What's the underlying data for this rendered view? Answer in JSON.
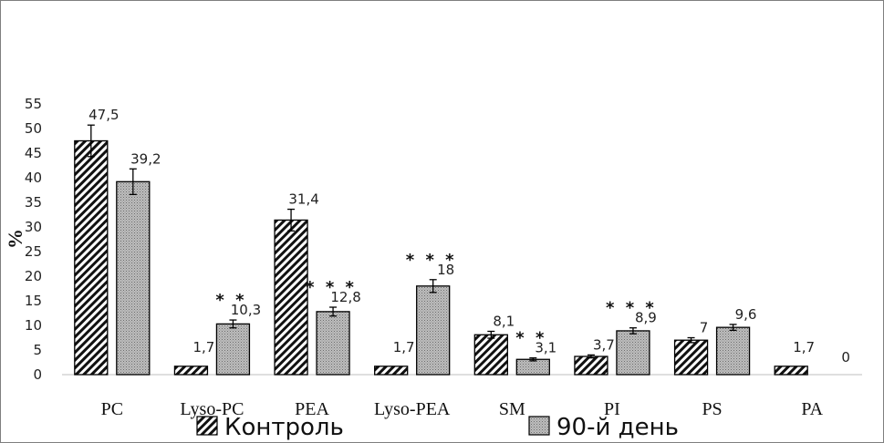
{
  "chart_data": {
    "type": "bar",
    "title": "",
    "xlabel": "",
    "ylabel": "%",
    "ylim": [
      0,
      55
    ],
    "yticks": [
      0,
      5,
      10,
      15,
      20,
      25,
      30,
      35,
      40,
      45,
      50,
      55
    ],
    "categories": [
      "PC",
      "Lyso-PC",
      "PEA",
      "Lyso-PEA",
      "SM",
      "PI",
      "PS",
      "PA"
    ],
    "series": [
      {
        "name": "Контроль",
        "pattern": "hatched",
        "values": [
          47.5,
          1.7,
          31.4,
          1.7,
          8.1,
          3.7,
          7,
          1.7
        ],
        "labels": [
          "47,5",
          "1,7",
          "31,4",
          "1,7",
          "8,1",
          "3,7",
          "7",
          "1,7"
        ],
        "errors": [
          3.2,
          null,
          2.2,
          null,
          0.7,
          0.3,
          0.5,
          null
        ],
        "significance": [
          "",
          "",
          "",
          "",
          "",
          "",
          "",
          ""
        ]
      },
      {
        "name": "90-й день",
        "pattern": "dotted",
        "values": [
          39.2,
          10.3,
          12.8,
          18,
          3.1,
          8.9,
          9.6,
          0
        ],
        "labels": [
          "39,2",
          "10,3",
          "12,8",
          "18",
          "3,1",
          "8,9",
          "9,6",
          "0"
        ],
        "errors": [
          2.6,
          0.8,
          0.9,
          1.3,
          0.3,
          0.6,
          0.6,
          null
        ],
        "significance": [
          "",
          "**",
          "***",
          "***",
          "**",
          "***",
          "",
          ""
        ]
      }
    ],
    "legend_position": "bottom"
  }
}
